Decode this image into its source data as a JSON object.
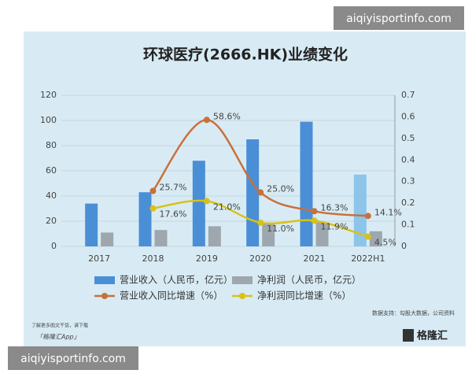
{
  "chart_data": {
    "type": "bar",
    "title": "环球医疗(2666.HK)业绩变化",
    "categories": [
      "2017",
      "2018",
      "2019",
      "2020",
      "2021",
      "2022H1"
    ],
    "ylim": [
      0,
      120
    ],
    "yticks": [
      0,
      20,
      40,
      60,
      80,
      100,
      120
    ],
    "y2lim": [
      0,
      0.7
    ],
    "y2ticks": [
      0,
      0.1,
      0.2,
      0.3,
      0.4,
      0.5,
      0.6,
      0.7
    ],
    "series": [
      {
        "name": "营业收入（人民币，亿元）",
        "type": "bar",
        "color": "#4a8fd6",
        "colors": [
          "#4a8fd6",
          "#4a8fd6",
          "#4a8fd6",
          "#4a8fd6",
          "#4a8fd6",
          "#8cc4ea"
        ],
        "values": [
          34,
          43,
          68,
          85,
          99,
          57
        ]
      },
      {
        "name": "净利润（人民币，亿元）",
        "type": "bar",
        "color": "#9ea7ad",
        "values": [
          11,
          13,
          16,
          18,
          19,
          12
        ]
      },
      {
        "name": "营业收入同比增速（%）",
        "type": "line",
        "axis": "y2",
        "color": "#c8703a",
        "values": [
          null,
          0.257,
          0.586,
          0.25,
          0.163,
          0.141
        ],
        "value_labels": [
          null,
          "25.7%",
          "58.6%",
          "25.0%",
          "16.3%",
          "14.1%"
        ]
      },
      {
        "name": "净利润同比增速（%）",
        "type": "line",
        "axis": "y2",
        "color": "#d8c21a",
        "values": [
          null,
          0.176,
          0.21,
          0.11,
          0.119,
          0.045
        ],
        "value_labels": [
          null,
          "17.6%",
          "21.0%",
          "11.0%",
          "11.9%",
          "4.5%"
        ]
      }
    ]
  },
  "source": "数据支持：勾股大数据，公司资料",
  "footer": [
    "了解更多图文干货，请下载",
    "「格隆汇App」"
  ],
  "logo": "格隆汇",
  "watermarks": [
    "aiqiyisportinfo.com",
    "aiqiyisportinfo.com"
  ]
}
